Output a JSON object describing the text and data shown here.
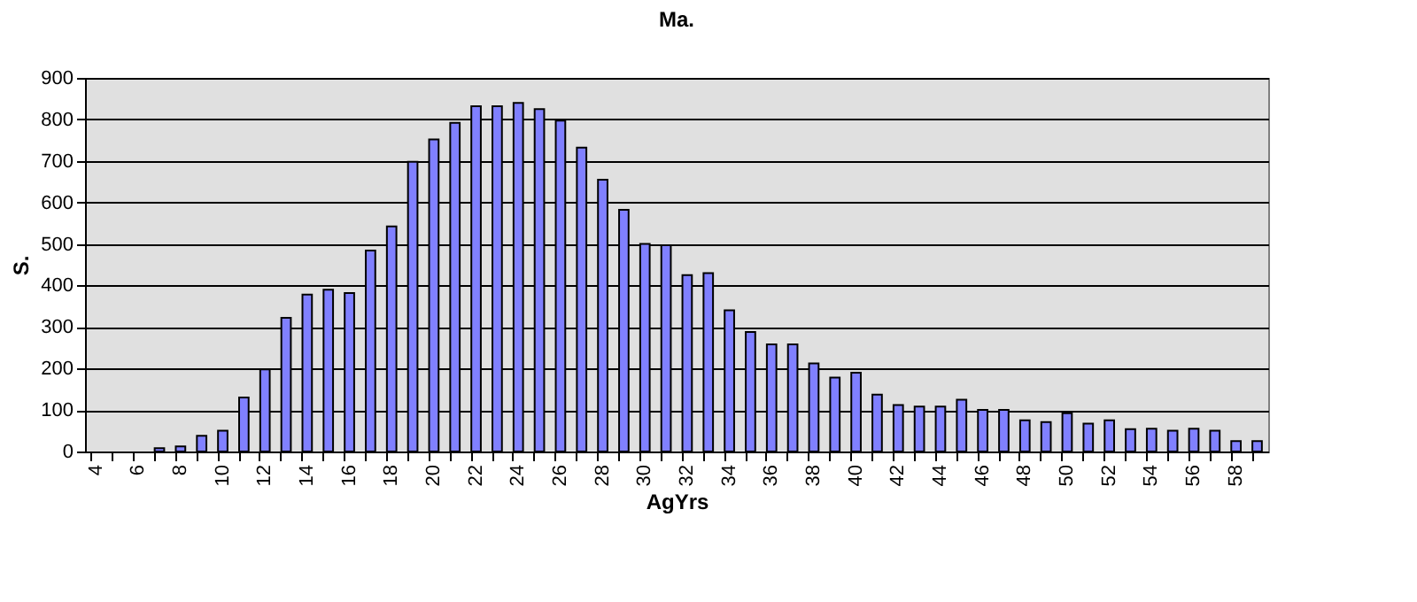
{
  "chart_data": {
    "type": "bar",
    "title": "Ma.",
    "xlabel": "AgYrs",
    "ylabel": "S.",
    "categories": [
      "4",
      null,
      "6",
      null,
      "8",
      null,
      "10",
      null,
      "12",
      null,
      "14",
      null,
      "16",
      null,
      "18",
      null,
      "20",
      null,
      "22",
      null,
      "24",
      null,
      "26",
      null,
      "28",
      null,
      "30",
      null,
      "32",
      null,
      "34",
      null,
      "36",
      null,
      "38",
      null,
      "40",
      null,
      "42",
      null,
      "44",
      null,
      "46",
      null,
      "48",
      null,
      "50",
      null,
      "52",
      null,
      "54",
      null,
      "56",
      null,
      "58",
      null
    ],
    "values": [
      0,
      0,
      0,
      8,
      12,
      38,
      50,
      130,
      198,
      322,
      378,
      390,
      382,
      484,
      542,
      698,
      752,
      792,
      832,
      832,
      840,
      825,
      797,
      732,
      655,
      582,
      500,
      497,
      425,
      430,
      340,
      288,
      258,
      258,
      212,
      178,
      190,
      137,
      112,
      108,
      108,
      125,
      100,
      100,
      75,
      71,
      92,
      67,
      75,
      54,
      55,
      50,
      55,
      50,
      25,
      25
    ],
    "color": "#8080ff",
    "ylim": [
      0,
      900
    ],
    "yticks": [
      0,
      100,
      200,
      300,
      400,
      500,
      600,
      700,
      800,
      900
    ],
    "grid": "y"
  }
}
